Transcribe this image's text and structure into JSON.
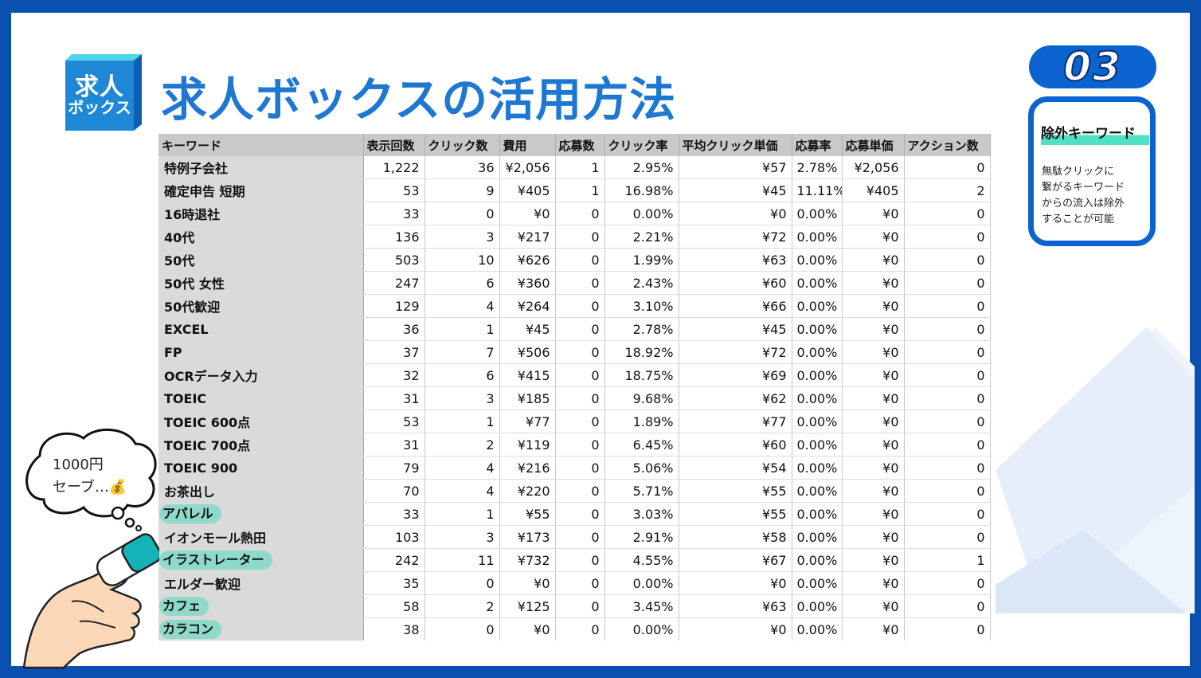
{
  "logo": {
    "line1": "求人",
    "line2": "ボックス"
  },
  "title": "求人ボックスの活用方法",
  "step_number": "03",
  "side_box": {
    "title": "除外キーワード",
    "text": "無駄クリックに\n繋がるキーワード\nからの流入は除外\nすることが可能"
  },
  "bubble": {
    "text": "1000円\nセーブ…💰"
  },
  "colors": {
    "frame": "#0b4fb0",
    "title": "#1e78d2",
    "highlight": "#8fd9cb",
    "accent": "#4fe0c6"
  },
  "table": {
    "headers": [
      "キーワード",
      "表示回数",
      "クリック数",
      "費用",
      "応募数",
      "クリック率",
      "平均クリック単価",
      "応募率",
      "応募単価",
      "アクション数"
    ],
    "rows": [
      {
        "cells": [
          "特例子会社",
          "1,222",
          "36",
          "¥2,056",
          "1",
          "2.95%",
          "¥57",
          "2.78%",
          "¥2,056",
          "0"
        ],
        "highlight": false
      },
      {
        "cells": [
          "確定申告 短期",
          "53",
          "9",
          "¥405",
          "1",
          "16.98%",
          "¥45",
          "11.11%",
          "¥405",
          "2"
        ],
        "highlight": false
      },
      {
        "cells": [
          "16時退社",
          "33",
          "0",
          "¥0",
          "0",
          "0.00%",
          "¥0",
          "0.00%",
          "¥0",
          "0"
        ],
        "highlight": false
      },
      {
        "cells": [
          "40代",
          "136",
          "3",
          "¥217",
          "0",
          "2.21%",
          "¥72",
          "0.00%",
          "¥0",
          "0"
        ],
        "highlight": false
      },
      {
        "cells": [
          "50代",
          "503",
          "10",
          "¥626",
          "0",
          "1.99%",
          "¥63",
          "0.00%",
          "¥0",
          "0"
        ],
        "highlight": false
      },
      {
        "cells": [
          "50代 女性",
          "247",
          "6",
          "¥360",
          "0",
          "2.43%",
          "¥60",
          "0.00%",
          "¥0",
          "0"
        ],
        "highlight": false
      },
      {
        "cells": [
          "50代歓迎",
          "129",
          "4",
          "¥264",
          "0",
          "3.10%",
          "¥66",
          "0.00%",
          "¥0",
          "0"
        ],
        "highlight": false
      },
      {
        "cells": [
          "EXCEL",
          "36",
          "1",
          "¥45",
          "0",
          "2.78%",
          "¥45",
          "0.00%",
          "¥0",
          "0"
        ],
        "highlight": false
      },
      {
        "cells": [
          "FP",
          "37",
          "7",
          "¥506",
          "0",
          "18.92%",
          "¥72",
          "0.00%",
          "¥0",
          "0"
        ],
        "highlight": false
      },
      {
        "cells": [
          "OCRデータ入力",
          "32",
          "6",
          "¥415",
          "0",
          "18.75%",
          "¥69",
          "0.00%",
          "¥0",
          "0"
        ],
        "highlight": false
      },
      {
        "cells": [
          "TOEIC",
          "31",
          "3",
          "¥185",
          "0",
          "9.68%",
          "¥62",
          "0.00%",
          "¥0",
          "0"
        ],
        "highlight": false
      },
      {
        "cells": [
          "TOEIC 600点",
          "53",
          "1",
          "¥77",
          "0",
          "1.89%",
          "¥77",
          "0.00%",
          "¥0",
          "0"
        ],
        "highlight": false
      },
      {
        "cells": [
          "TOEIC 700点",
          "31",
          "2",
          "¥119",
          "0",
          "6.45%",
          "¥60",
          "0.00%",
          "¥0",
          "0"
        ],
        "highlight": false
      },
      {
        "cells": [
          "TOEIC 900",
          "79",
          "4",
          "¥216",
          "0",
          "5.06%",
          "¥54",
          "0.00%",
          "¥0",
          "0"
        ],
        "highlight": false
      },
      {
        "cells": [
          "お茶出し",
          "70",
          "4",
          "¥220",
          "0",
          "5.71%",
          "¥55",
          "0.00%",
          "¥0",
          "0"
        ],
        "highlight": false
      },
      {
        "cells": [
          "アパレル",
          "33",
          "1",
          "¥55",
          "0",
          "3.03%",
          "¥55",
          "0.00%",
          "¥0",
          "0"
        ],
        "highlight": true
      },
      {
        "cells": [
          "イオンモール熱田",
          "103",
          "3",
          "¥173",
          "0",
          "2.91%",
          "¥58",
          "0.00%",
          "¥0",
          "0"
        ],
        "highlight": false
      },
      {
        "cells": [
          "イラストレーター",
          "242",
          "11",
          "¥732",
          "0",
          "4.55%",
          "¥67",
          "0.00%",
          "¥0",
          "1"
        ],
        "highlight": true
      },
      {
        "cells": [
          "エルダー歓迎",
          "35",
          "0",
          "¥0",
          "0",
          "0.00%",
          "¥0",
          "0.00%",
          "¥0",
          "0"
        ],
        "highlight": false
      },
      {
        "cells": [
          "カフェ",
          "58",
          "2",
          "¥125",
          "0",
          "3.45%",
          "¥63",
          "0.00%",
          "¥0",
          "0"
        ],
        "highlight": true
      },
      {
        "cells": [
          "カラコン",
          "38",
          "0",
          "¥0",
          "0",
          "0.00%",
          "¥0",
          "0.00%",
          "¥0",
          "0"
        ],
        "highlight": true
      }
    ]
  }
}
